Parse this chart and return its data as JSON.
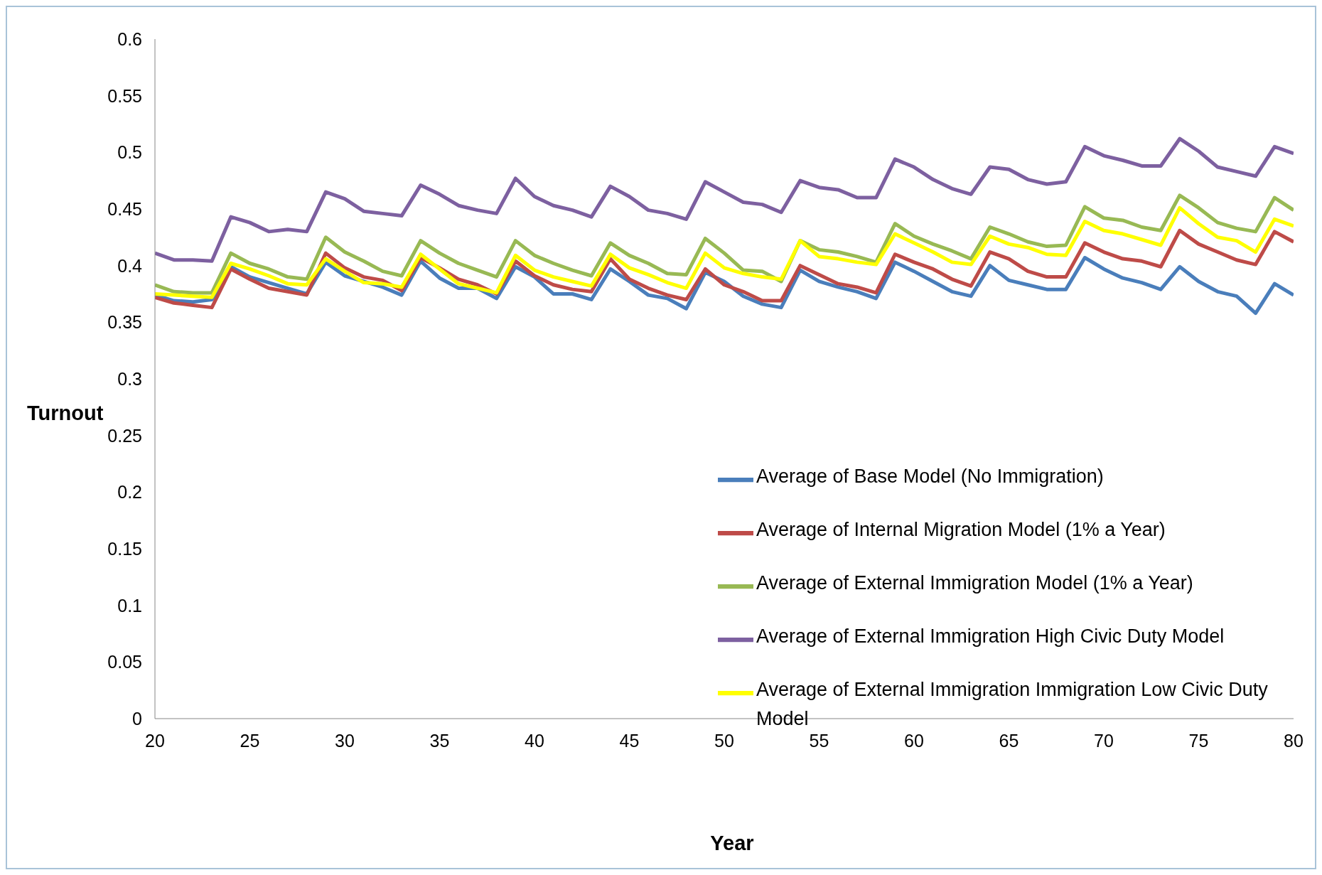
{
  "chart_data": {
    "type": "line",
    "xlabel": "Year",
    "ylabel": "Turnout",
    "x": [
      20,
      21,
      22,
      23,
      24,
      25,
      26,
      27,
      28,
      29,
      30,
      31,
      32,
      33,
      34,
      35,
      36,
      37,
      38,
      39,
      40,
      41,
      42,
      43,
      44,
      45,
      46,
      47,
      48,
      49,
      50,
      51,
      52,
      53,
      54,
      55,
      56,
      57,
      58,
      59,
      60,
      61,
      62,
      63,
      64,
      65,
      66,
      67,
      68,
      69,
      70,
      71,
      72,
      73,
      74,
      75,
      76,
      77,
      78,
      79,
      80
    ],
    "xlim": [
      20,
      80
    ],
    "xticks": [
      20,
      25,
      30,
      35,
      40,
      45,
      50,
      55,
      60,
      65,
      70,
      75,
      80
    ],
    "ylim": [
      0,
      0.6
    ],
    "yticks": [
      0,
      0.05,
      0.1,
      0.15,
      0.2,
      0.25,
      0.3,
      0.35,
      0.4,
      0.45,
      0.5,
      0.55,
      0.6
    ],
    "grid": false,
    "legend": "bottom right",
    "marker": "none",
    "line_style": "solid",
    "series": [
      {
        "name": "Average of Base Model (No Immigration)",
        "color": "#4a7ebb",
        "values": [
          0.374,
          0.369,
          0.368,
          0.37,
          0.399,
          0.39,
          0.385,
          0.38,
          0.375,
          0.403,
          0.391,
          0.386,
          0.381,
          0.374,
          0.404,
          0.389,
          0.38,
          0.38,
          0.371,
          0.399,
          0.39,
          0.375,
          0.375,
          0.37,
          0.397,
          0.386,
          0.374,
          0.371,
          0.362,
          0.394,
          0.386,
          0.373,
          0.366,
          0.363,
          0.396,
          0.386,
          0.381,
          0.377,
          0.371,
          0.403,
          0.395,
          0.386,
          0.377,
          0.373,
          0.4,
          0.387,
          0.383,
          0.379,
          0.379,
          0.407,
          0.397,
          0.389,
          0.385,
          0.379,
          0.399,
          0.386,
          0.377,
          0.373,
          0.358,
          0.384,
          0.374
        ]
      },
      {
        "name": "Average of Internal Migration Model (1% a Year)",
        "color": "#be4b48",
        "values": [
          0.372,
          0.367,
          0.365,
          0.363,
          0.397,
          0.388,
          0.38,
          0.377,
          0.374,
          0.411,
          0.398,
          0.39,
          0.387,
          0.378,
          0.407,
          0.398,
          0.388,
          0.383,
          0.375,
          0.404,
          0.391,
          0.383,
          0.379,
          0.377,
          0.406,
          0.388,
          0.38,
          0.374,
          0.37,
          0.397,
          0.383,
          0.377,
          0.369,
          0.369,
          0.4,
          0.392,
          0.384,
          0.381,
          0.376,
          0.41,
          0.403,
          0.397,
          0.388,
          0.382,
          0.412,
          0.406,
          0.395,
          0.39,
          0.39,
          0.42,
          0.412,
          0.406,
          0.404,
          0.399,
          0.431,
          0.419,
          0.412,
          0.405,
          0.401,
          0.43,
          0.421
        ]
      },
      {
        "name": "Average of External Immigration Model (1% a Year)",
        "color": "#98b954",
        "values": [
          0.383,
          0.377,
          0.376,
          0.376,
          0.411,
          0.402,
          0.397,
          0.39,
          0.388,
          0.425,
          0.412,
          0.404,
          0.395,
          0.391,
          0.422,
          0.411,
          0.402,
          0.396,
          0.39,
          0.422,
          0.409,
          0.402,
          0.396,
          0.391,
          0.42,
          0.409,
          0.402,
          0.393,
          0.392,
          0.424,
          0.411,
          0.396,
          0.395,
          0.386,
          0.422,
          0.414,
          0.412,
          0.408,
          0.403,
          0.437,
          0.426,
          0.419,
          0.413,
          0.406,
          0.434,
          0.428,
          0.421,
          0.417,
          0.418,
          0.452,
          0.442,
          0.44,
          0.434,
          0.431,
          0.462,
          0.451,
          0.438,
          0.433,
          0.43,
          0.46,
          0.449
        ]
      },
      {
        "name": "Average of External Immigration High Civic Duty Model",
        "color": "#7d60a0",
        "values": [
          0.411,
          0.405,
          0.405,
          0.404,
          0.443,
          0.438,
          0.43,
          0.432,
          0.43,
          0.465,
          0.459,
          0.448,
          0.446,
          0.444,
          0.471,
          0.463,
          0.453,
          0.449,
          0.446,
          0.477,
          0.461,
          0.453,
          0.449,
          0.443,
          0.47,
          0.461,
          0.449,
          0.446,
          0.441,
          0.474,
          0.465,
          0.456,
          0.454,
          0.447,
          0.475,
          0.469,
          0.467,
          0.46,
          0.46,
          0.494,
          0.487,
          0.476,
          0.468,
          0.463,
          0.487,
          0.485,
          0.476,
          0.472,
          0.474,
          0.505,
          0.497,
          0.493,
          0.488,
          0.488,
          0.512,
          0.501,
          0.487,
          0.483,
          0.479,
          0.505,
          0.499
        ]
      },
      {
        "name": "Average of External Immigration Immigration Low Civic Duty Model",
        "color": "#ffff00",
        "values": [
          0.375,
          0.374,
          0.373,
          0.372,
          0.402,
          0.397,
          0.391,
          0.384,
          0.383,
          0.406,
          0.395,
          0.385,
          0.384,
          0.381,
          0.41,
          0.397,
          0.384,
          0.38,
          0.376,
          0.409,
          0.396,
          0.39,
          0.386,
          0.382,
          0.41,
          0.398,
          0.392,
          0.385,
          0.38,
          0.411,
          0.398,
          0.393,
          0.39,
          0.388,
          0.422,
          0.408,
          0.406,
          0.403,
          0.401,
          0.428,
          0.42,
          0.412,
          0.403,
          0.401,
          0.426,
          0.419,
          0.416,
          0.41,
          0.409,
          0.439,
          0.431,
          0.428,
          0.423,
          0.418,
          0.451,
          0.437,
          0.425,
          0.422,
          0.412,
          0.441,
          0.435
        ]
      }
    ]
  }
}
